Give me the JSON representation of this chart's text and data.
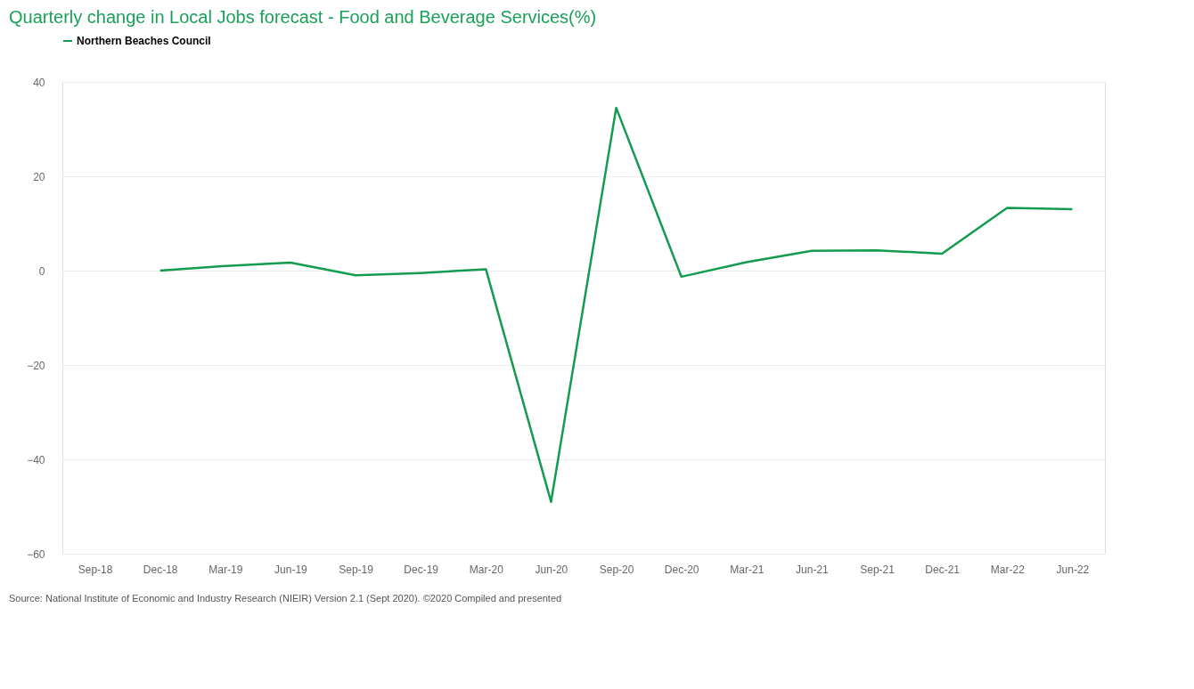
{
  "chart_data": {
    "type": "line",
    "title": "Quarterly change in Local Jobs forecast - Food and Beverage Services(%)",
    "categories": [
      "Sep-18",
      "Dec-18",
      "Mar-19",
      "Jun-19",
      "Sep-19",
      "Dec-19",
      "Mar-20",
      "Jun-20",
      "Sep-20",
      "Dec-20",
      "Mar-21",
      "Jun-21",
      "Sep-21",
      "Dec-21",
      "Mar-22",
      "Jun-22"
    ],
    "series": [
      {
        "name": "Northern Beaches Council",
        "color": "#139b50",
        "values": [
          null,
          0,
          1,
          1.7,
          -1,
          -0.5,
          0.3,
          -49,
          34.5,
          -1.3,
          1.8,
          4.2,
          4.3,
          3.6,
          13.3,
          13.0
        ]
      }
    ],
    "ylim": [
      -60,
      40
    ],
    "yticks": [
      -60,
      -40,
      -20,
      0,
      20,
      40
    ],
    "grid": "y",
    "legend": "top left",
    "marker": "none",
    "line_style": "solid",
    "annotations": [
      "Source: National Institute of Economic and Industry Research (NIEIR) Version 2.1 (Sept 2020). ©2020 Compiled and presented"
    ]
  }
}
